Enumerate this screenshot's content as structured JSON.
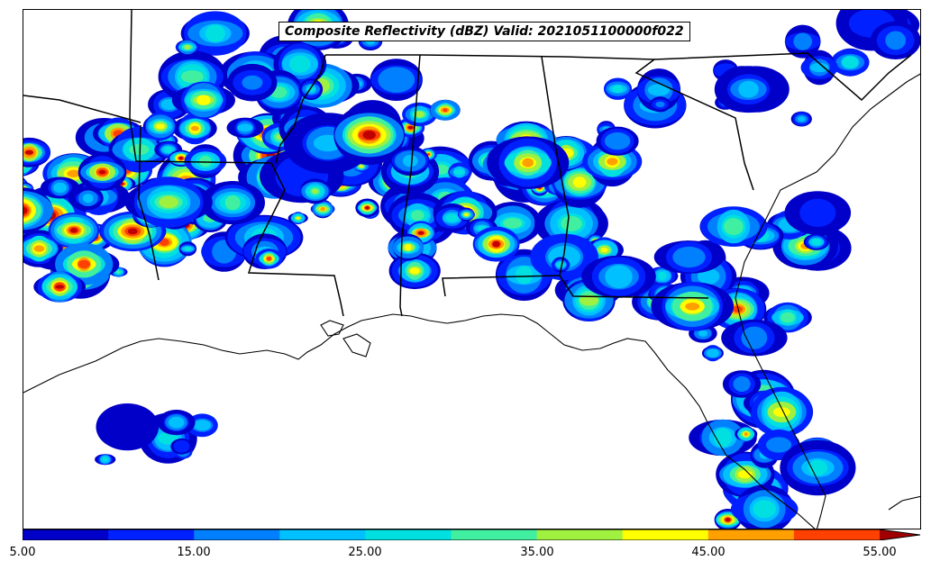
{
  "title": "Composite Reflectivity (dBZ) Valid: 2021051100000f022",
  "colorbar": {
    "colors": [
      "#0000c8",
      "#0020ff",
      "#0080ff",
      "#00c0ff",
      "#00e0e0",
      "#40f0a0",
      "#a0f040",
      "#ffff00",
      "#ffa000",
      "#ff4000",
      "#c00000"
    ],
    "extend_color": "#a00000",
    "ticks": [
      "5.00",
      "15.00",
      "25.00",
      "35.00",
      "45.00",
      "55.00"
    ]
  },
  "map": {
    "coastline_color": "#000000",
    "boundary_color": "#000000"
  }
}
